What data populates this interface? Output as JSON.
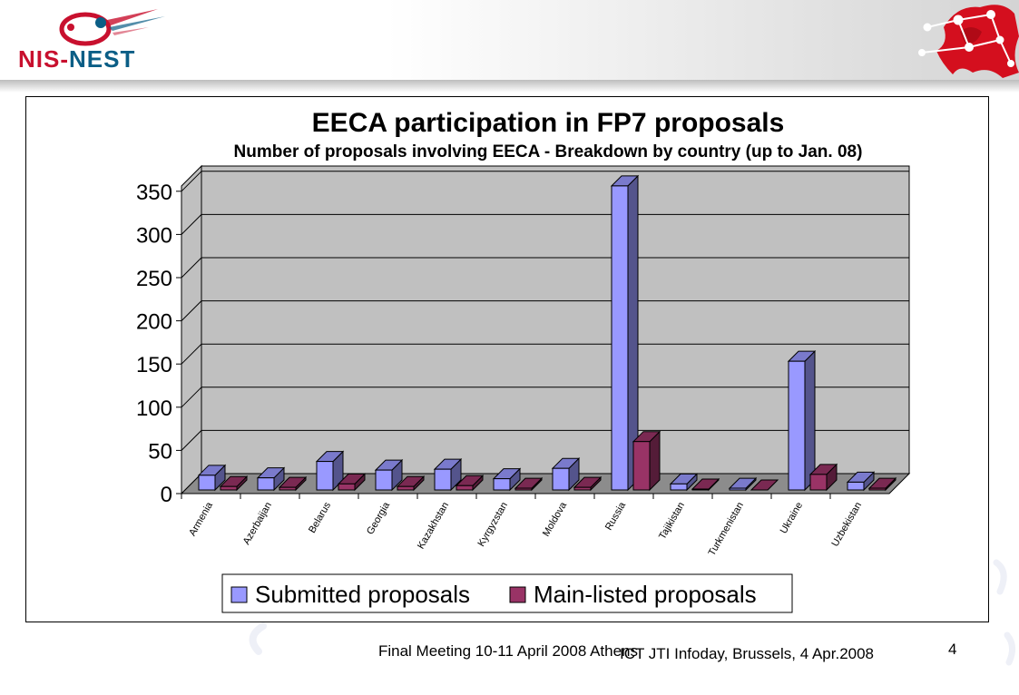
{
  "header": {
    "logo_text": {
      "part1": "NIS",
      "dash": "-",
      "part2": "NEST"
    },
    "logo_icon": "nis-nest-logo-icon",
    "corner_graphic": "europe-network-map-icon"
  },
  "footer": {
    "meeting": "Final Meeting 10-11 April 2008 Athens",
    "event": "ICT JTI Infoday, Brussels, 4 Apr.2008",
    "page_number": "4"
  },
  "colors": {
    "submitted": "#9999ff",
    "main_listed": "#993366",
    "plot_background": "#c0c0c0",
    "brand_red": "#c8102e",
    "brand_blue": "#0b5e86"
  },
  "chart_data": {
    "type": "bar",
    "title": "EECA participation in FP7 proposals",
    "subtitle": "Number of proposals involving EECA - Breakdown by country (up to Jan. 08)",
    "xlabel": "",
    "ylabel": "",
    "ylim": [
      0,
      350
    ],
    "yticks": [
      0,
      50,
      100,
      150,
      200,
      250,
      300,
      350
    ],
    "grid": true,
    "style": "3d",
    "legend_position": "bottom",
    "categories": [
      "Armenia",
      "Azerbaijan",
      "Belarus",
      "Georgia",
      "Kazakhstan",
      "Kyrgyzstan",
      "Moldova",
      "Russia",
      "Tajikistan",
      "Turkmenistan",
      "Ukraine",
      "Uzbekistan"
    ],
    "series": [
      {
        "name": "Submitted proposals",
        "color": "#9999ff",
        "values": [
          17,
          14,
          33,
          23,
          24,
          13,
          25,
          352,
          7,
          2,
          149,
          9
        ]
      },
      {
        "name": "Main-listed proposals",
        "color": "#993366",
        "values": [
          4,
          3,
          7,
          4,
          5,
          2,
          3,
          56,
          1,
          0,
          18,
          2
        ]
      }
    ]
  }
}
